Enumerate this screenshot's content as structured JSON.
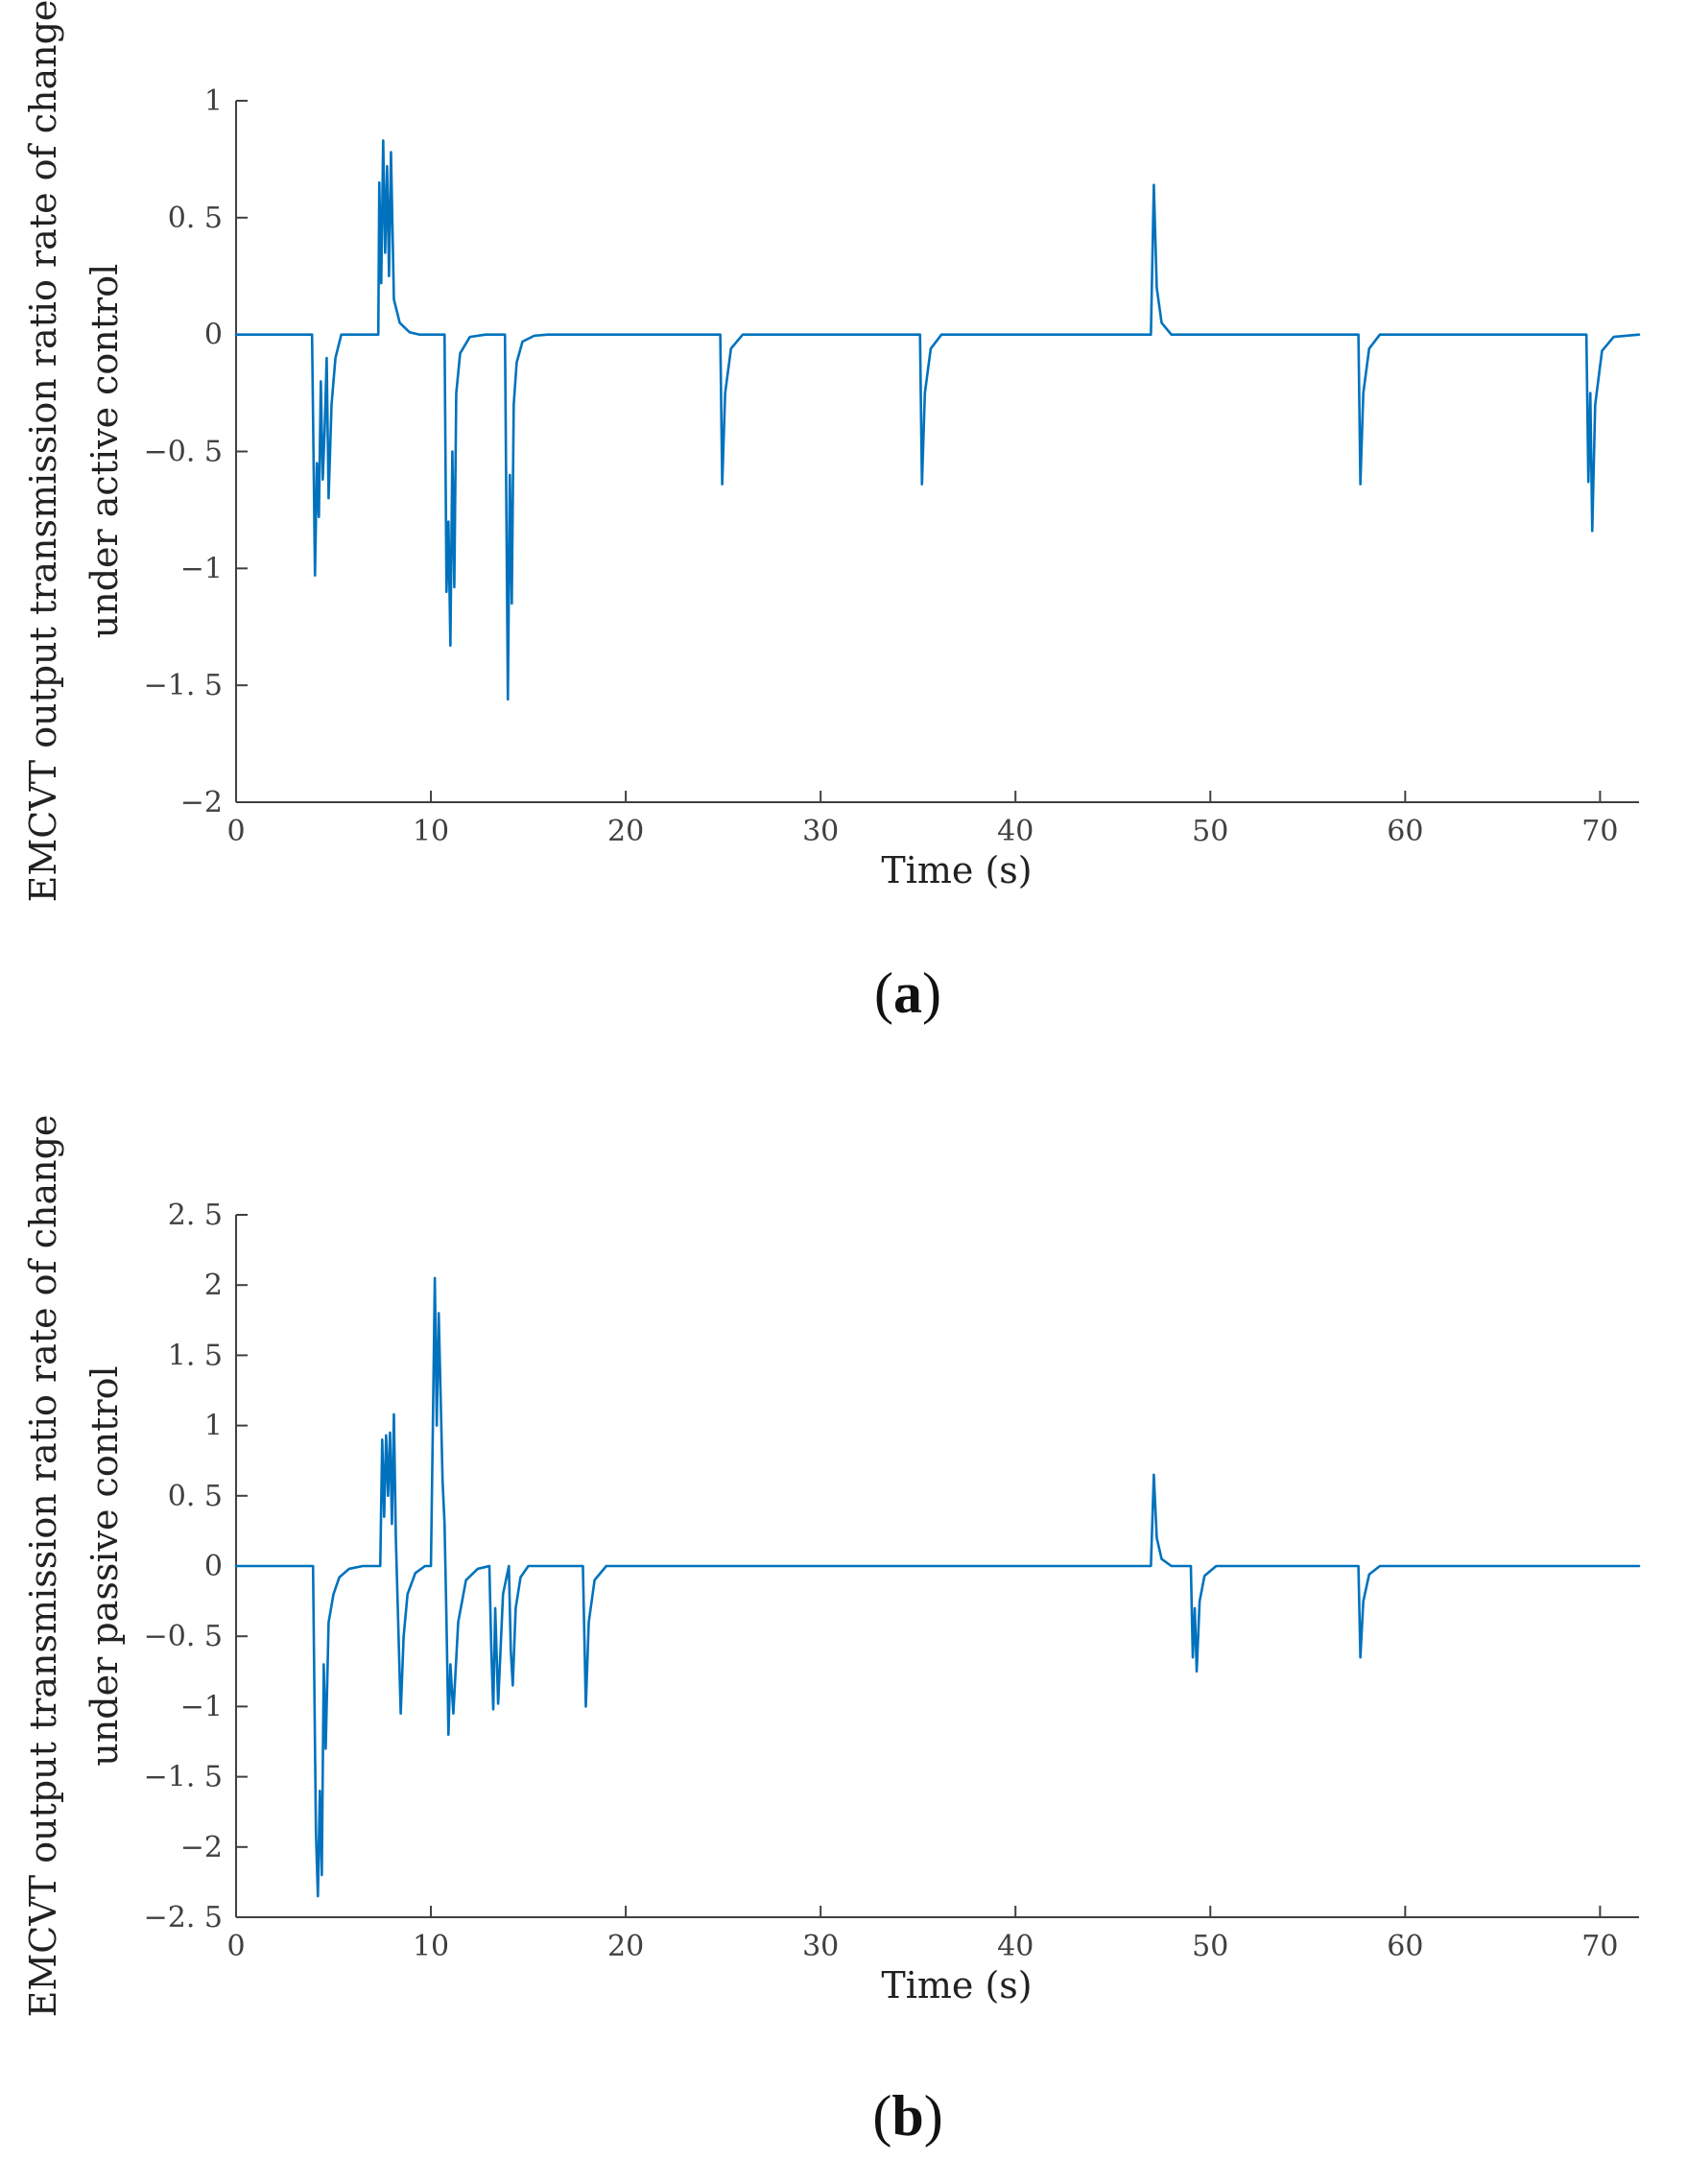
{
  "accent_color": "#0072BD",
  "chart_data": [
    {
      "type": "line",
      "panel_label": "a",
      "title": "",
      "xlabel": "Time (s)",
      "ylabel_lines": [
        "EMCVT output transmission ratio rate of change",
        "under active control"
      ],
      "xlim": [
        0,
        72
      ],
      "ylim": [
        -2,
        1
      ],
      "xticks": [
        0,
        10,
        20,
        30,
        40,
        50,
        60,
        70
      ],
      "xtick_labels": [
        "0",
        "10",
        "20",
        "30",
        "40",
        "50",
        "60",
        "70"
      ],
      "yticks": [
        1,
        0.5,
        0,
        -0.5,
        -1,
        -1.5,
        -2
      ],
      "ytick_labels": [
        "1",
        "0. 5",
        "0",
        "−0. 5",
        "−1",
        "−1. 5",
        "−2"
      ],
      "grid": false,
      "series": [
        {
          "name": "active control",
          "color": "#0072BD",
          "x": [
            0,
            3.9,
            4.05,
            4.15,
            4.25,
            4.35,
            4.45,
            4.55,
            4.65,
            4.75,
            4.9,
            5.1,
            5.4,
            7.3,
            7.35,
            7.45,
            7.55,
            7.65,
            7.75,
            7.85,
            7.95,
            8.1,
            8.4,
            8.9,
            9.4,
            10.7,
            10.8,
            10.9,
            11.0,
            11.1,
            11.2,
            11.3,
            11.5,
            12.0,
            12.8,
            13.8,
            13.95,
            14.05,
            14.15,
            14.25,
            14.4,
            14.7,
            15.3,
            16.0,
            24.85,
            24.95,
            25.1,
            25.4,
            26.0,
            35.1,
            35.2,
            35.35,
            35.65,
            36.2,
            46.95,
            47.1,
            47.25,
            47.5,
            48.0,
            57.6,
            57.7,
            57.85,
            58.15,
            58.7,
            69.3,
            69.4,
            69.5,
            69.6,
            69.75,
            70.1,
            70.7,
            72
          ],
          "y": [
            0,
            0,
            -1.03,
            -0.55,
            -0.78,
            -0.2,
            -0.62,
            -0.4,
            -0.1,
            -0.7,
            -0.3,
            -0.1,
            0,
            0,
            0.65,
            0.22,
            0.83,
            0.35,
            0.72,
            0.25,
            0.78,
            0.15,
            0.05,
            0.01,
            0,
            0,
            -1.1,
            -0.8,
            -1.33,
            -0.5,
            -1.08,
            -0.25,
            -0.08,
            -0.01,
            0,
            0,
            -1.56,
            -0.6,
            -1.15,
            -0.3,
            -0.12,
            -0.03,
            -0.005,
            0,
            0,
            -0.64,
            -0.25,
            -0.06,
            0,
            0,
            -0.64,
            -0.25,
            -0.06,
            0,
            0,
            0.64,
            0.2,
            0.05,
            0,
            0,
            -0.64,
            -0.25,
            -0.06,
            0,
            0,
            -0.63,
            -0.25,
            -0.84,
            -0.3,
            -0.07,
            -0.01,
            0
          ]
        }
      ]
    },
    {
      "type": "line",
      "panel_label": "b",
      "title": "",
      "xlabel": "Time (s)",
      "ylabel_lines": [
        "EMCVT output transmission ratio rate of change",
        "under passive control"
      ],
      "xlim": [
        0,
        72
      ],
      "ylim": [
        -2.5,
        2.5
      ],
      "xticks": [
        0,
        10,
        20,
        30,
        40,
        50,
        60,
        70
      ],
      "xtick_labels": [
        "0",
        "10",
        "20",
        "30",
        "40",
        "50",
        "60",
        "70"
      ],
      "yticks": [
        2.5,
        2,
        1.5,
        1,
        0.5,
        0,
        -0.5,
        -1,
        -1.5,
        -2,
        -2.5
      ],
      "ytick_labels": [
        "2. 5",
        "2",
        "1. 5",
        "1",
        "0. 5",
        "0",
        "−0. 5",
        "−1",
        "−1. 5",
        "−2",
        "−2. 5"
      ],
      "grid": false,
      "series": [
        {
          "name": "passive control",
          "color": "#0072BD",
          "x": [
            0,
            3.95,
            4.1,
            4.2,
            4.3,
            4.4,
            4.5,
            4.6,
            4.75,
            5.0,
            5.3,
            5.8,
            6.5,
            7.4,
            7.5,
            7.6,
            7.7,
            7.8,
            7.9,
            8.0,
            8.1,
            8.2,
            8.3,
            8.45,
            8.6,
            8.8,
            9.2,
            9.7,
            10.0,
            10.1,
            10.2,
            10.3,
            10.4,
            10.5,
            10.6,
            10.7,
            10.8,
            10.9,
            11.0,
            11.15,
            11.4,
            11.8,
            12.4,
            13.0,
            13.1,
            13.2,
            13.3,
            13.45,
            13.7,
            14.0,
            14.1,
            14.2,
            14.35,
            14.6,
            15.0,
            17.8,
            17.95,
            18.1,
            18.4,
            19.0,
            46.95,
            47.1,
            47.25,
            47.5,
            48.0,
            49.0,
            49.1,
            49.2,
            49.3,
            49.45,
            49.7,
            50.3,
            57.6,
            57.7,
            57.85,
            58.15,
            58.7,
            72
          ],
          "y": [
            0,
            0,
            -1.9,
            -2.35,
            -1.6,
            -2.2,
            -0.7,
            -1.3,
            -0.4,
            -0.2,
            -0.08,
            -0.02,
            0,
            0,
            0.9,
            0.35,
            0.93,
            0.5,
            0.95,
            0.3,
            1.08,
            0.2,
            -0.3,
            -1.05,
            -0.5,
            -0.2,
            -0.05,
            0,
            0,
            1.0,
            2.05,
            1.0,
            1.8,
            1.2,
            0.6,
            0.3,
            -0.4,
            -1.2,
            -0.7,
            -1.05,
            -0.4,
            -0.1,
            -0.02,
            0,
            -0.6,
            -1.02,
            -0.3,
            -0.98,
            -0.2,
            0,
            -0.6,
            -0.85,
            -0.3,
            -0.08,
            0,
            0,
            -1.0,
            -0.4,
            -0.1,
            0,
            0,
            0.65,
            0.2,
            0.05,
            0,
            0,
            -0.65,
            -0.3,
            -0.75,
            -0.25,
            -0.07,
            0,
            0,
            -0.65,
            -0.25,
            -0.06,
            0,
            0
          ]
        }
      ]
    }
  ]
}
